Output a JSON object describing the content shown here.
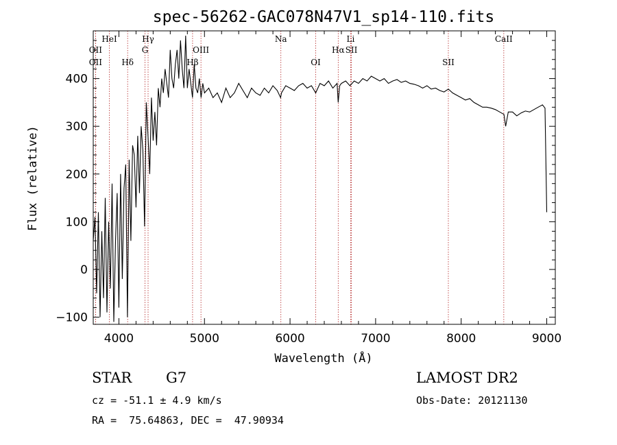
{
  "chart_data": {
    "type": "line",
    "title": "spec-56262-GAC078N47V1_sp14-110.fits",
    "xlabel": "Wavelength (Å)",
    "ylabel": "Flux (relative)",
    "xlim": [
      3700,
      9100
    ],
    "ylim": [
      -115,
      500
    ],
    "x_ticks": [
      4000,
      5000,
      6000,
      7000,
      8000,
      9000
    ],
    "y_ticks": [
      -100,
      0,
      100,
      200,
      300,
      400
    ],
    "grid": false,
    "legend": "none",
    "series": [
      {
        "line_color": "#000000",
        "x": [
          3700,
          3720,
          3740,
          3760,
          3780,
          3800,
          3820,
          3840,
          3860,
          3880,
          3900,
          3920,
          3940,
          3960,
          3980,
          4000,
          4020,
          4040,
          4060,
          4080,
          4100,
          4120,
          4140,
          4160,
          4180,
          4200,
          4220,
          4240,
          4260,
          4280,
          4300,
          4320,
          4340,
          4360,
          4380,
          4400,
          4420,
          4440,
          4460,
          4480,
          4500,
          4520,
          4540,
          4560,
          4580,
          4600,
          4620,
          4640,
          4660,
          4680,
          4700,
          4720,
          4740,
          4760,
          4780,
          4800,
          4820,
          4840,
          4860,
          4880,
          4900,
          4920,
          4940,
          4960,
          4980,
          5000,
          5050,
          5100,
          5150,
          5200,
          5250,
          5300,
          5350,
          5400,
          5450,
          5500,
          5550,
          5600,
          5650,
          5700,
          5750,
          5800,
          5850,
          5890,
          5900,
          5950,
          6000,
          6050,
          6100,
          6150,
          6200,
          6250,
          6300,
          6350,
          6400,
          6450,
          6500,
          6550,
          6563,
          6580,
          6600,
          6650,
          6700,
          6750,
          6800,
          6850,
          6900,
          6950,
          7000,
          7050,
          7100,
          7150,
          7200,
          7250,
          7300,
          7350,
          7400,
          7450,
          7500,
          7550,
          7600,
          7650,
          7700,
          7750,
          7800,
          7850,
          7900,
          7950,
          8000,
          8050,
          8100,
          8150,
          8200,
          8250,
          8300,
          8350,
          8400,
          8450,
          8500,
          8520,
          8550,
          8600,
          8650,
          8700,
          8750,
          8800,
          8850,
          8900,
          8950,
          8980,
          9000
        ],
        "y": [
          60,
          110,
          -50,
          120,
          -100,
          80,
          -60,
          150,
          -90,
          100,
          -40,
          180,
          -110,
          60,
          160,
          -80,
          200,
          -20,
          170,
          220,
          -100,
          230,
          60,
          260,
          240,
          130,
          280,
          160,
          300,
          250,
          90,
          350,
          280,
          200,
          360,
          270,
          330,
          260,
          380,
          340,
          400,
          370,
          420,
          390,
          360,
          460,
          400,
          380,
          430,
          460,
          400,
          480,
          420,
          380,
          490,
          380,
          420,
          390,
          360,
          430,
          380,
          370,
          400,
          360,
          390,
          370,
          380,
          360,
          370,
          350,
          380,
          360,
          370,
          390,
          375,
          360,
          380,
          370,
          365,
          380,
          370,
          385,
          375,
          360,
          370,
          385,
          380,
          375,
          385,
          390,
          380,
          385,
          370,
          390,
          385,
          395,
          380,
          390,
          350,
          385,
          390,
          395,
          385,
          395,
          390,
          400,
          395,
          405,
          400,
          395,
          400,
          390,
          395,
          398,
          392,
          395,
          390,
          388,
          385,
          380,
          385,
          378,
          380,
          375,
          372,
          378,
          370,
          365,
          360,
          355,
          358,
          350,
          345,
          340,
          340,
          338,
          335,
          330,
          325,
          300,
          330,
          330,
          322,
          328,
          332,
          330,
          335,
          340,
          345,
          338,
          120
        ]
      }
    ],
    "spectral_lines": [
      {
        "label": "OII",
        "x": 3727,
        "row": 1
      },
      {
        "label": "OII",
        "x": 3727,
        "row": 2
      },
      {
        "label": "HeI",
        "x": 3889,
        "row": 0
      },
      {
        "label": "Hδ",
        "x": 4102,
        "row": 2
      },
      {
        "label": "Hγ",
        "x": 4341,
        "row": 0
      },
      {
        "label": "G",
        "x": 4305,
        "row": 1
      },
      {
        "label": "Hβ",
        "x": 4861,
        "row": 2
      },
      {
        "label": "OIII",
        "x": 4959,
        "row": 1
      },
      {
        "label": "Na",
        "x": 5893,
        "row": 0
      },
      {
        "label": "OI",
        "x": 6300,
        "row": 2
      },
      {
        "label": "Hα",
        "x": 6563,
        "row": 1
      },
      {
        "label": "SII",
        "x": 6717,
        "row": 1
      },
      {
        "label": "Li",
        "x": 6708,
        "row": 0
      },
      {
        "label": "SII",
        "x": 7850,
        "row": 2
      },
      {
        "label": "CaII",
        "x": 8498,
        "row": 0
      }
    ],
    "line_marker_color": "#b22222"
  },
  "info": {
    "object_class": "STAR",
    "subclass": "G7",
    "survey": "LAMOST DR2",
    "velocity": "cz = -51.1 ± 4.9 km/s",
    "obs_date": "Obs-Date: 20121130",
    "coords": "RA =  75.64863, DEC =  47.90934"
  }
}
